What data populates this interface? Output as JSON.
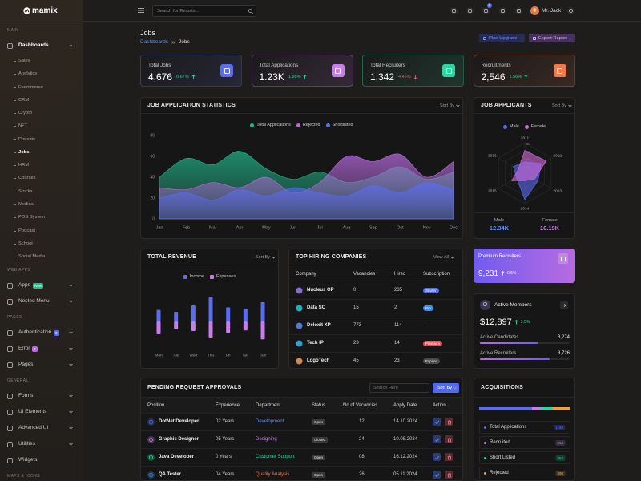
{
  "sidebar": {
    "logo": "mamix",
    "active_child": 7,
    "sections": [
      {
        "title": "MAIN",
        "items": [
          {
            "label": "Dashboards",
            "active": true,
            "submenu": true,
            "children": [
              "Sales",
              "Analytics",
              "Ecommerce",
              "CRM",
              "Crypto",
              "NFT",
              "Projects",
              "Jobs",
              "HRM",
              "Courses",
              "Stocks",
              "Medical",
              "POS System",
              "Podcast",
              "School",
              "Social Media"
            ]
          }
        ]
      },
      {
        "title": "WEB APPS",
        "items": [
          {
            "label": "Apps",
            "badge": "New",
            "badge_color": "#1fbf8f",
            "submenu": true
          },
          {
            "label": "Nested Menu",
            "submenu": true
          }
        ]
      },
      {
        "title": "PAGES",
        "items": [
          {
            "label": "Authentication",
            "badge": "8",
            "badge_color": "#5b6cf0",
            "submenu": true
          },
          {
            "label": "Error",
            "badge": "7",
            "badge_color": "#b86be0",
            "submenu": true
          },
          {
            "label": "Pages",
            "submenu": true
          }
        ]
      },
      {
        "title": "GENERAL",
        "items": [
          {
            "label": "Forms",
            "submenu": true
          },
          {
            "label": "UI Elements",
            "submenu": true
          },
          {
            "label": "Advanced UI",
            "submenu": true
          },
          {
            "label": "Utilities",
            "submenu": true
          },
          {
            "label": "Widgets"
          }
        ]
      },
      {
        "title": "MAPS & ICONS"
      }
    ]
  },
  "header": {
    "search": "Search for Results...",
    "cart_count": "5",
    "user": "Mr. Jack"
  },
  "page": {
    "title": "Jobs",
    "breadcrumb": [
      "Dashboards",
      "Jobs"
    ],
    "buttons": [
      {
        "label": "Plan Upgrade",
        "color": "#7f93ff",
        "bg": "#262c52"
      },
      {
        "label": "Export Report",
        "color": "#d9b2f2",
        "bg": "#46325c"
      }
    ]
  },
  "stats": [
    {
      "label": "Total Jobs",
      "value": "4,676",
      "change": "0.67%",
      "dir": "up",
      "color": "#5b6cf0"
    },
    {
      "label": "Total Applications",
      "value": "1.23K",
      "change": "1.95%",
      "dir": "up",
      "color": "#c77ee8"
    },
    {
      "label": "Total Recruiters",
      "value": "1,342",
      "change": "4.45%",
      "dir": "down",
      "color": "#2dd4a0"
    },
    {
      "label": "Recruitments",
      "value": "2,546",
      "change": "1.56%",
      "dir": "up",
      "color": "#f07a4a"
    }
  ],
  "chart_data": [
    {
      "type": "area",
      "title": "JOB APPLICATION STATISTICS",
      "sort": "Sort By",
      "grid": false,
      "categories": [
        "Jan",
        "Feb",
        "Mar",
        "Apr",
        "May",
        "Jun",
        "Jul",
        "Aug",
        "Sep",
        "Oct",
        "Nov",
        "Dec"
      ],
      "series": [
        {
          "name": "Total Applications",
          "color": "#22b58a",
          "values": [
            40,
            58,
            52,
            65,
            48,
            38,
            45,
            35,
            40,
            50,
            38,
            45
          ]
        },
        {
          "name": "Rejected",
          "color": "#b86be0",
          "values": [
            30,
            28,
            35,
            30,
            40,
            25,
            35,
            60,
            55,
            62,
            40,
            55
          ]
        },
        {
          "name": "Shortlisted",
          "color": "#5b6cf0",
          "values": [
            20,
            25,
            18,
            28,
            22,
            30,
            25,
            22,
            32,
            25,
            35,
            28
          ]
        }
      ],
      "ylim": [
        0,
        80
      ],
      "yticks": [
        0,
        20,
        40,
        60,
        80
      ]
    },
    {
      "type": "radar",
      "title": "JOB APPLICANTS",
      "sort": "Sort By",
      "categories": [
        "2011",
        "2012",
        "2013",
        "2014",
        "2015",
        "2016"
      ],
      "series": [
        {
          "name": "Male",
          "color": "#5b6cf0",
          "values": [
            30,
            50,
            40,
            70,
            25,
            35
          ]
        },
        {
          "name": "Female",
          "color": "#d36ce0",
          "values": [
            60,
            65,
            30,
            20,
            40,
            20
          ]
        }
      ],
      "rlim": [
        0,
        80
      ],
      "rticks": [
        20,
        40,
        60,
        80
      ],
      "summary": [
        {
          "label": "Male",
          "value": "12.34K",
          "color": "#5b8cf0"
        },
        {
          "label": "Female",
          "value": "10.19K",
          "color": "#c77ee8"
        }
      ]
    },
    {
      "type": "bar",
      "title": "TOTAL REVENUE",
      "sort": "Sort By",
      "categories": [
        "Mon",
        "Tue",
        "Wed",
        "Thu",
        "Fri",
        "Sat",
        "Sun"
      ],
      "series": [
        {
          "name": "Income",
          "color": "#5b6cf0",
          "values": [
            18,
            15,
            25,
            38,
            22,
            20,
            30
          ]
        },
        {
          "name": "Expenses",
          "color": "#c77ee8",
          "values": [
            -20,
            -12,
            -15,
            -25,
            -18,
            -14,
            -28
          ]
        }
      ],
      "ylim": [
        -50,
        50
      ]
    }
  ],
  "hiring": {
    "title": "TOP HIRING COMPANIES",
    "link": "View All",
    "columns": [
      "Company",
      "Vacancies",
      "Hired",
      "Subscription"
    ],
    "rows": [
      {
        "company": "Nucleus OP",
        "vacancies": "0",
        "hired": "235",
        "subscription": "Starter",
        "badge": "#4f6af0",
        "icon": "#9c7cf0"
      },
      {
        "company": "Data SC",
        "vacancies": "15",
        "hired": "2",
        "subscription": "Pro",
        "badge": "#3a8ef0",
        "icon": "#2dc5d4"
      },
      {
        "company": "Deloxit XP",
        "vacancies": "773",
        "hired": "114",
        "subscription": "-",
        "icon": "#5b8cf0"
      },
      {
        "company": "Tech IP",
        "vacancies": "23",
        "hired": "14",
        "subscription": "Premium",
        "badge": "#e0505b",
        "icon": "#3ab8f0"
      },
      {
        "company": "LogoTech",
        "vacancies": "45",
        "hired": "23",
        "subscription": "Expired",
        "badge": "#4a4a4a",
        "icon": "#f0a05a"
      }
    ]
  },
  "premium": {
    "title": "Premium Recruiters",
    "value": "9,231",
    "change": "0.5%"
  },
  "members": {
    "title": "Active Members",
    "value": "$12,897",
    "change": "3.5%",
    "rows": [
      {
        "label": "Active Candidates",
        "value": "3,274"
      },
      {
        "label": "Active Recruiters",
        "value": "8,726"
      }
    ]
  },
  "pending": {
    "title": "PENDING REQUEST APPROVALS",
    "search": "Search Here",
    "sort": "Sort By",
    "columns": [
      "Position",
      "Experience",
      "Department",
      "Status",
      "No.of Vacancies",
      "Apply Date",
      "Action"
    ],
    "rows": [
      {
        "position": "DotNet Developer",
        "experience": "02 Years",
        "department": "Development",
        "dept_color": "#5b8cf0",
        "status": "Open",
        "vacancies": "12",
        "date": "14.10.2024",
        "icon": "#5b6cf0"
      },
      {
        "position": "Graphic Designer",
        "experience": "05 Years",
        "department": "Designing",
        "dept_color": "#c77ee8",
        "status": "Closed",
        "vacancies": "24",
        "date": "10.08.2024",
        "icon": "#c77ee8"
      },
      {
        "position": "Java Developer",
        "experience": "0 Years",
        "department": "Customer Support",
        "dept_color": "#2dd4a0",
        "status": "Open",
        "vacancies": "08",
        "date": "16.12.2024",
        "icon": "#2dd4a0"
      },
      {
        "position": "QA Tester",
        "experience": "04 Years",
        "department": "Quality Analysis",
        "dept_color": "#f07a4a",
        "status": "Open",
        "vacancies": "26",
        "date": "05.11.2024",
        "icon": "#3a8ef0"
      }
    ]
  },
  "acquisitions": {
    "title": "ACQUISITIONS",
    "items": [
      {
        "label": "Total Applications",
        "value": 1180,
        "color": "#5b6cf0"
      },
      {
        "label": "Recruited",
        "value": 214,
        "color": "#c77ee8"
      },
      {
        "label": "Short Listed",
        "value": 262,
        "color": "#2dd4a0"
      },
      {
        "label": "Rejected",
        "value": 390,
        "color": "#f0a03a"
      }
    ]
  }
}
